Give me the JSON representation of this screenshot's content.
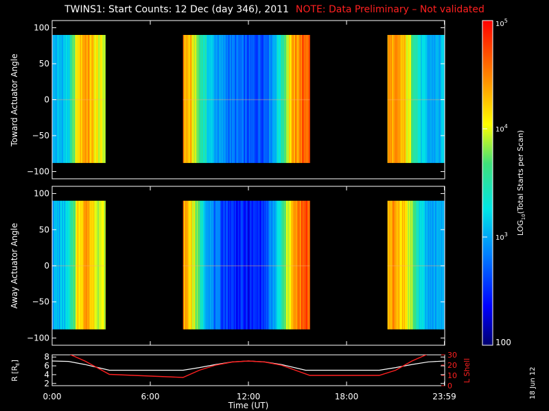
{
  "title": "TWINS1: Start Counts: 12 Dec (day 346), 2011",
  "note": "NOTE: Data Preliminary – Not validated",
  "date_stamp": "18 Jun 12",
  "colors": {
    "background": "#000000",
    "axes": "#ffffff",
    "note": "#ff2020",
    "l_shell": "#ff2020",
    "r_line": "#ffffff"
  },
  "chart_data": [
    {
      "type": "heatmap",
      "panel": "toward",
      "ylabel": "Toward Actuator Angle",
      "x_range_hours": [
        0,
        24
      ],
      "ylim": [
        -110,
        110
      ],
      "y_ticks": [
        "100",
        "50",
        "0",
        "−50",
        "−100"
      ],
      "y_tick_values": [
        100,
        50,
        0,
        -50,
        -100
      ],
      "data_extent_deg": [
        -88,
        90
      ],
      "coverage_hours": [
        [
          0.0,
          3.25
        ],
        [
          8.0,
          15.75
        ],
        [
          20.5,
          24.0
        ]
      ],
      "log10_profile": [
        {
          "t": 0.0,
          "v": 3.0
        },
        {
          "t": 0.5,
          "v": 3.05
        },
        {
          "t": 1.0,
          "v": 3.2
        },
        {
          "t": 1.5,
          "v": 4.05
        },
        {
          "t": 2.0,
          "v": 4.35
        },
        {
          "t": 2.5,
          "v": 4.1
        },
        {
          "t": 3.0,
          "v": 3.9
        },
        {
          "t": 8.0,
          "v": 4.3
        },
        {
          "t": 8.5,
          "v": 4.1
        },
        {
          "t": 9.0,
          "v": 3.6
        },
        {
          "t": 9.5,
          "v": 3.2
        },
        {
          "t": 10.0,
          "v": 2.95
        },
        {
          "t": 11.0,
          "v": 2.75
        },
        {
          "t": 12.0,
          "v": 2.6
        },
        {
          "t": 13.0,
          "v": 2.7
        },
        {
          "t": 13.5,
          "v": 3.0
        },
        {
          "t": 14.0,
          "v": 3.45
        },
        {
          "t": 14.5,
          "v": 4.1
        },
        {
          "t": 15.0,
          "v": 4.35
        },
        {
          "t": 15.5,
          "v": 4.5
        },
        {
          "t": 20.5,
          "v": 4.3
        },
        {
          "t": 21.0,
          "v": 4.25
        },
        {
          "t": 21.5,
          "v": 4.15
        },
        {
          "t": 22.0,
          "v": 3.75
        },
        {
          "t": 22.5,
          "v": 3.2
        },
        {
          "t": 23.0,
          "v": 2.95
        },
        {
          "t": 23.5,
          "v": 3.0
        },
        {
          "t": 24.0,
          "v": 3.05
        }
      ]
    },
    {
      "type": "heatmap",
      "panel": "away",
      "ylabel": "Away Actuator Angle",
      "x_range_hours": [
        0,
        24
      ],
      "ylim": [
        -110,
        110
      ],
      "y_ticks": [
        "100",
        "50",
        "0",
        "−50",
        "−100"
      ],
      "y_tick_values": [
        100,
        50,
        0,
        -50,
        -100
      ],
      "data_extent_deg": [
        -88,
        90
      ],
      "coverage_hours": [
        [
          0.0,
          3.25
        ],
        [
          8.0,
          15.75
        ],
        [
          20.5,
          24.0
        ]
      ],
      "log10_profile": [
        {
          "t": 0.0,
          "v": 3.0
        },
        {
          "t": 0.5,
          "v": 3.05
        },
        {
          "t": 1.0,
          "v": 3.2
        },
        {
          "t": 1.5,
          "v": 4.05
        },
        {
          "t": 2.0,
          "v": 4.35
        },
        {
          "t": 2.5,
          "v": 4.1
        },
        {
          "t": 3.0,
          "v": 3.9
        },
        {
          "t": 8.0,
          "v": 4.3
        },
        {
          "t": 8.5,
          "v": 4.1
        },
        {
          "t": 9.0,
          "v": 3.5
        },
        {
          "t": 9.5,
          "v": 3.0
        },
        {
          "t": 10.0,
          "v": 2.7
        },
        {
          "t": 11.0,
          "v": 2.5
        },
        {
          "t": 12.0,
          "v": 2.4
        },
        {
          "t": 13.0,
          "v": 2.55
        },
        {
          "t": 13.5,
          "v": 2.9
        },
        {
          "t": 14.0,
          "v": 3.4
        },
        {
          "t": 14.5,
          "v": 4.1
        },
        {
          "t": 15.0,
          "v": 4.35
        },
        {
          "t": 15.5,
          "v": 4.5
        },
        {
          "t": 20.5,
          "v": 4.3
        },
        {
          "t": 21.0,
          "v": 4.25
        },
        {
          "t": 21.5,
          "v": 4.15
        },
        {
          "t": 22.0,
          "v": 3.75
        },
        {
          "t": 22.5,
          "v": 3.2
        },
        {
          "t": 23.0,
          "v": 2.95
        },
        {
          "t": 23.5,
          "v": 3.0
        },
        {
          "t": 24.0,
          "v": 3.05
        }
      ]
    },
    {
      "type": "line",
      "panel": "orbit",
      "ylabel": "R [Rₑ]",
      "ylabel_parts": [
        "R [R",
        "E",
        "]"
      ],
      "ylim": [
        1.5,
        8.5
      ],
      "y_ticks": [
        "8",
        "6",
        "4",
        "2"
      ],
      "y_tick_values": [
        8,
        6,
        4,
        2
      ],
      "series": [
        {
          "x": [
            0,
            1,
            2,
            3.5,
            5,
            8,
            9,
            10,
            11,
            12,
            13,
            14,
            15.5,
            18,
            20,
            21,
            22,
            23,
            24
          ],
          "y": [
            7.1,
            7.0,
            6.3,
            5.0,
            5.0,
            5.0,
            5.6,
            6.3,
            6.9,
            7.1,
            6.9,
            6.3,
            5.0,
            5.0,
            5.0,
            5.6,
            6.3,
            6.9,
            7.1
          ]
        }
      ],
      "y2label": "L Shell",
      "y2lim": [
        0,
        30
      ],
      "y2_ticks": [
        "30",
        "20",
        "10",
        "0"
      ],
      "y2_tick_values": [
        30,
        20,
        10,
        0
      ],
      "series2": [
        {
          "x": [
            1.0,
            2.0,
            3.5,
            8.0,
            9.0,
            10.0,
            11.0,
            12.0,
            13.0,
            14.0,
            15.75,
            20.0,
            21.0,
            22.0,
            23.0
          ],
          "y": [
            31,
            24,
            11,
            8,
            15,
            20,
            23,
            24,
            23,
            20,
            10,
            10,
            15,
            24,
            31
          ]
        }
      ],
      "x_ticks": [
        "0:00",
        "6:00",
        "12:00",
        "18:00",
        "23:59"
      ],
      "x_tick_values": [
        0,
        6,
        12,
        18,
        23.98
      ],
      "xlabel": "Time (UT)"
    }
  ],
  "colorbar": {
    "label_parts": [
      "LOG",
      "10",
      "(Total Starts per Scan)"
    ],
    "scale": "log",
    "range_log10": [
      2,
      5
    ],
    "tick_labels": [
      {
        "base": "10",
        "exp": "5",
        "log10": 5
      },
      {
        "base": "10",
        "exp": "4",
        "log10": 4
      },
      {
        "base": "10",
        "exp": "3",
        "log10": 3
      },
      {
        "base": "100",
        "exp": "",
        "log10": 2
      }
    ]
  }
}
